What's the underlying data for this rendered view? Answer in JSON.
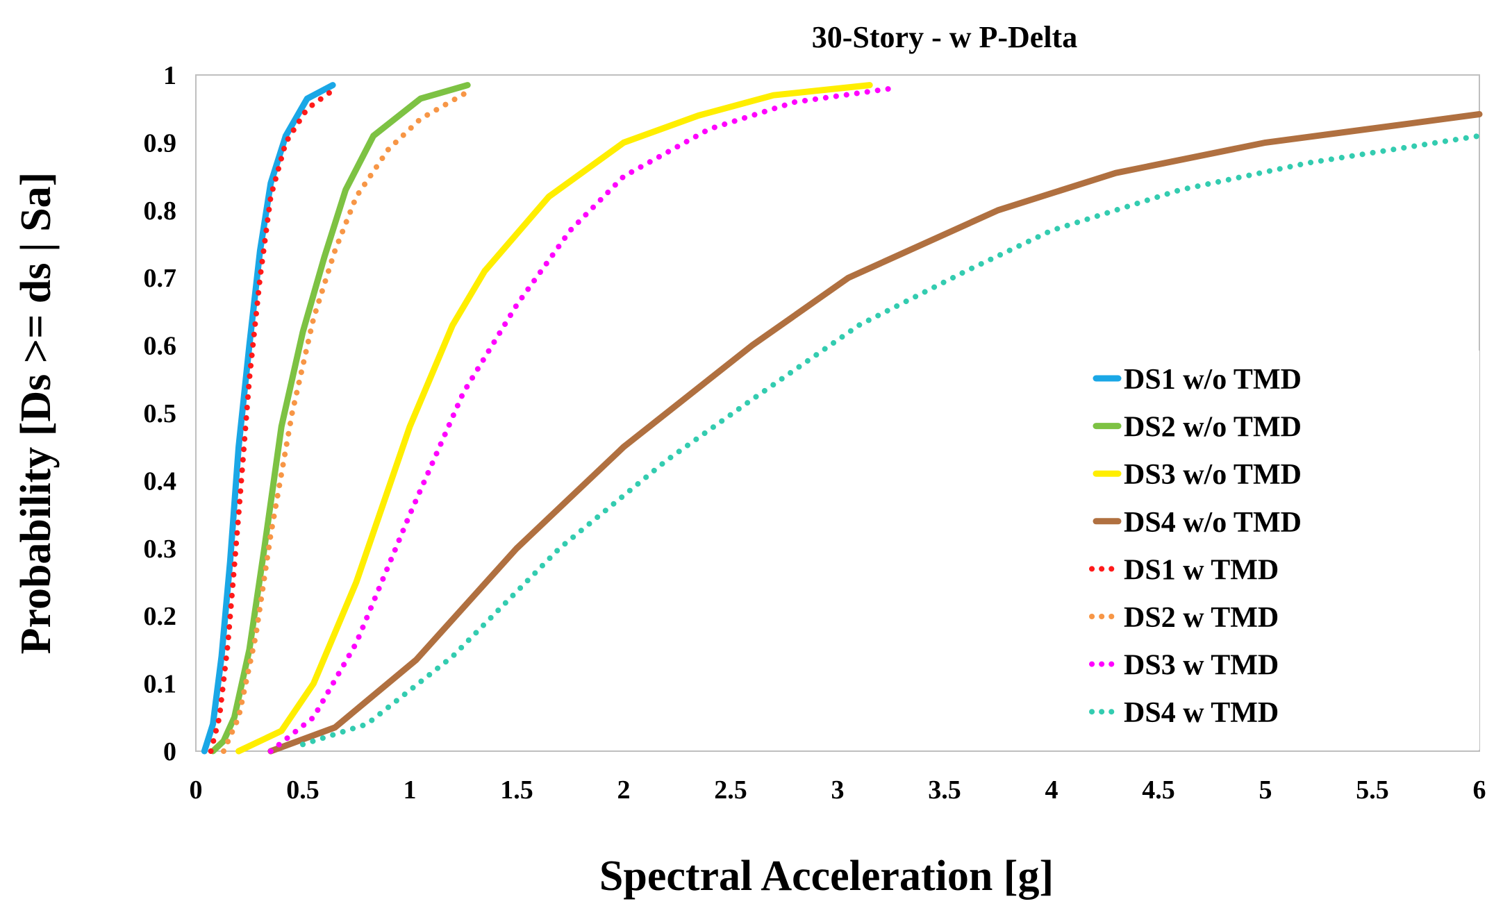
{
  "chart_data": {
    "type": "line",
    "title": "30-Story - w P-Delta",
    "xlabel": "Spectral Acceleration [g]",
    "ylabel": "Probability [Ds >= ds | Sa]",
    "xlim": [
      0,
      6
    ],
    "ylim": [
      0,
      1
    ],
    "xticks": [
      "0",
      "0.5",
      "1",
      "1.5",
      "2",
      "2.5",
      "3",
      "3.5",
      "4",
      "4.5",
      "5",
      "5.5",
      "6"
    ],
    "yticks": [
      "0",
      "0.1",
      "0.2",
      "0.3",
      "0.4",
      "0.5",
      "0.6",
      "0.7",
      "0.8",
      "0.9",
      "1"
    ],
    "grid": false,
    "legend_position": "right",
    "series": [
      {
        "name": "DS1 w/o TMD",
        "color": "#1aa7e6",
        "style": "solid",
        "x": [
          0.04,
          0.08,
          0.12,
          0.16,
          0.2,
          0.25,
          0.3,
          0.35,
          0.42,
          0.52,
          0.64
        ],
        "y": [
          0.0,
          0.04,
          0.14,
          0.28,
          0.45,
          0.6,
          0.74,
          0.84,
          0.91,
          0.965,
          0.985
        ]
      },
      {
        "name": "DS2 w/o TMD",
        "color": "#7dc243",
        "style": "solid",
        "x": [
          0.08,
          0.13,
          0.18,
          0.25,
          0.32,
          0.4,
          0.5,
          0.6,
          0.7,
          0.83,
          1.05,
          1.27
        ],
        "y": [
          0.0,
          0.015,
          0.05,
          0.15,
          0.3,
          0.48,
          0.62,
          0.73,
          0.83,
          0.91,
          0.965,
          0.985
        ]
      },
      {
        "name": "DS3 w/o TMD",
        "color": "#ffee00",
        "style": "solid",
        "x": [
          0.2,
          0.4,
          0.55,
          0.75,
          1.0,
          1.2,
          1.35,
          1.65,
          2.0,
          2.35,
          2.7,
          3.15
        ],
        "y": [
          0.0,
          0.03,
          0.1,
          0.25,
          0.48,
          0.63,
          0.71,
          0.82,
          0.9,
          0.94,
          0.97,
          0.985
        ]
      },
      {
        "name": "DS4 w/o TMD",
        "color": "#b07040",
        "style": "solid",
        "x": [
          0.35,
          0.65,
          1.03,
          1.5,
          2.0,
          2.6,
          3.05,
          3.75,
          4.3,
          5.0,
          5.6,
          6.0
        ],
        "y": [
          0.0,
          0.035,
          0.135,
          0.3,
          0.45,
          0.6,
          0.7,
          0.8,
          0.855,
          0.9,
          0.925,
          0.942
        ]
      },
      {
        "name": "DS1 w TMD",
        "color": "#ff1a1a",
        "style": "dotted",
        "x": [
          0.07,
          0.11,
          0.15,
          0.2,
          0.25,
          0.3,
          0.35,
          0.42,
          0.52,
          0.63
        ],
        "y": [
          0.0,
          0.05,
          0.16,
          0.35,
          0.55,
          0.7,
          0.82,
          0.9,
          0.95,
          0.975
        ]
      },
      {
        "name": "DS2 w TMD",
        "color": "#f79646",
        "style": "dotted",
        "x": [
          0.13,
          0.2,
          0.28,
          0.35,
          0.45,
          0.55,
          0.65,
          0.75,
          0.9,
          1.05,
          1.27
        ],
        "y": [
          0.0,
          0.05,
          0.17,
          0.32,
          0.5,
          0.64,
          0.74,
          0.82,
          0.89,
          0.935,
          0.975
        ]
      },
      {
        "name": "DS3 w TMD",
        "color": "#ff00ff",
        "style": "dotted",
        "x": [
          0.35,
          0.55,
          0.75,
          1.0,
          1.25,
          1.5,
          1.75,
          2.0,
          2.4,
          2.8,
          3.25
        ],
        "y": [
          0.0,
          0.05,
          0.16,
          0.35,
          0.53,
          0.66,
          0.77,
          0.85,
          0.92,
          0.96,
          0.98
        ]
      },
      {
        "name": "DS4 w TMD",
        "color": "#33ccb0",
        "style": "dotted",
        "x": [
          0.5,
          0.8,
          1.2,
          1.7,
          2.2,
          2.6,
          3.1,
          3.6,
          4.0,
          4.6,
          5.2,
          6.0
        ],
        "y": [
          0.01,
          0.04,
          0.14,
          0.3,
          0.43,
          0.52,
          0.63,
          0.71,
          0.77,
          0.83,
          0.87,
          0.91
        ]
      }
    ]
  }
}
